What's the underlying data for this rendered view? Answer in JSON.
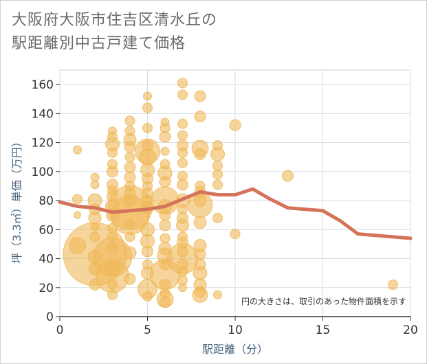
{
  "title_line1": "大阪府大阪市住吉区清水丘の",
  "title_line2": "駅距離別中古戸建て価格",
  "chart_data": {
    "type": "scatter",
    "title": "大阪府大阪市住吉区清水丘の駅距離別中古戸建て価格",
    "xlabel": "駅距離（分）",
    "ylabel": "坪（3.3㎡）単価（万円）",
    "xlim": [
      0,
      20
    ],
    "ylim": [
      0,
      170
    ],
    "x_ticks": [
      0,
      5,
      10,
      15,
      20
    ],
    "y_ticks": [
      0,
      20,
      40,
      60,
      80,
      100,
      120,
      140,
      160
    ],
    "annotation": "円の大きさは、取引のあった物件面積を示す",
    "bubble_color": "#f0b95a",
    "line_color": "#d4735a",
    "bubbles": [
      [
        1,
        115,
        6
      ],
      [
        1,
        81,
        7
      ],
      [
        1,
        70,
        5
      ],
      [
        1,
        49,
        12
      ],
      [
        2,
        96,
        6
      ],
      [
        2,
        91,
        6
      ],
      [
        2,
        80,
        10
      ],
      [
        2,
        74,
        8
      ],
      [
        2,
        68,
        9
      ],
      [
        2,
        62,
        6
      ],
      [
        2,
        43,
        46
      ],
      [
        2,
        41,
        10
      ],
      [
        2,
        33,
        9
      ],
      [
        2,
        22,
        8
      ],
      [
        2,
        55,
        7
      ],
      [
        3,
        128,
        6
      ],
      [
        3,
        124,
        7
      ],
      [
        3,
        119,
        10
      ],
      [
        3,
        113,
        7
      ],
      [
        3,
        105,
        7
      ],
      [
        3,
        100,
        8
      ],
      [
        3,
        91,
        8
      ],
      [
        3,
        87,
        7
      ],
      [
        3,
        83,
        8
      ],
      [
        3,
        76,
        10
      ],
      [
        3,
        70,
        9
      ],
      [
        3,
        61,
        7
      ],
      [
        3,
        55,
        7
      ],
      [
        3,
        47,
        8
      ],
      [
        3,
        41,
        28
      ],
      [
        3,
        33,
        10
      ],
      [
        3,
        28,
        24
      ],
      [
        3,
        22,
        7
      ],
      [
        3,
        15,
        7
      ],
      [
        4,
        135,
        7
      ],
      [
        4,
        128,
        7
      ],
      [
        4,
        122,
        9
      ],
      [
        4,
        117,
        8
      ],
      [
        4,
        110,
        7
      ],
      [
        4,
        103,
        8
      ],
      [
        4,
        96,
        8
      ],
      [
        4,
        90,
        7
      ],
      [
        4,
        85,
        8
      ],
      [
        4,
        80,
        9
      ],
      [
        4,
        75,
        32
      ],
      [
        4,
        70,
        28
      ],
      [
        4,
        64,
        7
      ],
      [
        4,
        55,
        7
      ],
      [
        4,
        44,
        9
      ],
      [
        4,
        26,
        8
      ],
      [
        5,
        152,
        6
      ],
      [
        5,
        144,
        7
      ],
      [
        5,
        130,
        7
      ],
      [
        5,
        118,
        8
      ],
      [
        5,
        114,
        18
      ],
      [
        5,
        110,
        12
      ],
      [
        5,
        101,
        10
      ],
      [
        5,
        95,
        8
      ],
      [
        5,
        90,
        7
      ],
      [
        5,
        85,
        8
      ],
      [
        5,
        80,
        8
      ],
      [
        5,
        75,
        9
      ],
      [
        5,
        60,
        10
      ],
      [
        5,
        52,
        10
      ],
      [
        5,
        45,
        8
      ],
      [
        5,
        36,
        7
      ],
      [
        5,
        30,
        9
      ],
      [
        5,
        19,
        14
      ],
      [
        5,
        14,
        7
      ],
      [
        6,
        134,
        6
      ],
      [
        6,
        130,
        7
      ],
      [
        6,
        124,
        8
      ],
      [
        6,
        114,
        6
      ],
      [
        6,
        105,
        7
      ],
      [
        6,
        99,
        10
      ],
      [
        6,
        93,
        8
      ],
      [
        6,
        80,
        20
      ],
      [
        6,
        76,
        10
      ],
      [
        6,
        70,
        8
      ],
      [
        6,
        63,
        8
      ],
      [
        6,
        54,
        7
      ],
      [
        6,
        47,
        9
      ],
      [
        6,
        42,
        11
      ],
      [
        6,
        36,
        8
      ],
      [
        6,
        29,
        22
      ],
      [
        6,
        22,
        8
      ],
      [
        6,
        16,
        7
      ],
      [
        6,
        12,
        12
      ],
      [
        6,
        10,
        8
      ],
      [
        7,
        161,
        7
      ],
      [
        7,
        153,
        7
      ],
      [
        7,
        133,
        7
      ],
      [
        7,
        125,
        7
      ],
      [
        7,
        118,
        8
      ],
      [
        7,
        113,
        7
      ],
      [
        7,
        106,
        7
      ],
      [
        7,
        97,
        7
      ],
      [
        7,
        91,
        8
      ],
      [
        7,
        80,
        10
      ],
      [
        7,
        74,
        7
      ],
      [
        7,
        68,
        8
      ],
      [
        7,
        63,
        9
      ],
      [
        7,
        55,
        7
      ],
      [
        7,
        51,
        8
      ],
      [
        7,
        45,
        8
      ],
      [
        7,
        40,
        22
      ],
      [
        7,
        36,
        8
      ],
      [
        7,
        31,
        7
      ],
      [
        7,
        25,
        7
      ],
      [
        7,
        20,
        6
      ],
      [
        8,
        152,
        8
      ],
      [
        8,
        138,
        8
      ],
      [
        8,
        116,
        12
      ],
      [
        8,
        112,
        8
      ],
      [
        8,
        90,
        7
      ],
      [
        8,
        86,
        8
      ],
      [
        8,
        80,
        9
      ],
      [
        8,
        77,
        18
      ],
      [
        8,
        65,
        9
      ],
      [
        8,
        49,
        9
      ],
      [
        8,
        43,
        8
      ],
      [
        8,
        36,
        8
      ],
      [
        8,
        30,
        10
      ],
      [
        8,
        22,
        9
      ],
      [
        8,
        17,
        8
      ],
      [
        8,
        15,
        11
      ],
      [
        9,
        118,
        7
      ],
      [
        9,
        112,
        10
      ],
      [
        9,
        104,
        7
      ],
      [
        9,
        98,
        7
      ],
      [
        9,
        91,
        7
      ],
      [
        9,
        68,
        7
      ],
      [
        9,
        15,
        6
      ],
      [
        10,
        132,
        8
      ],
      [
        10,
        57,
        7
      ],
      [
        13,
        97,
        8
      ],
      [
        19,
        22,
        7
      ]
    ],
    "average_line": {
      "x": [
        0,
        1,
        2,
        3,
        4,
        5,
        6,
        7,
        8,
        9,
        10,
        11,
        12,
        13,
        14,
        15,
        16,
        17,
        18,
        19,
        20
      ],
      "y": [
        79,
        76,
        75,
        72,
        73,
        74,
        76,
        81,
        86,
        84,
        84,
        88,
        81,
        75,
        74,
        73,
        66,
        57,
        56,
        55,
        54
      ]
    }
  }
}
